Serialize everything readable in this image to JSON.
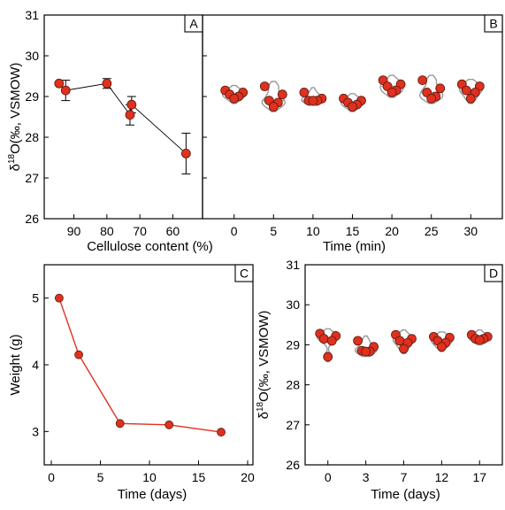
{
  "colors": {
    "marker": "#e0301e",
    "marker_edge": "#5a1a10",
    "violin": "#9a9a9a",
    "line_c": "#e0301e"
  },
  "chart_data": [
    {
      "panel": "A",
      "type": "scatter",
      "xlabel": "Cellulose content (%)",
      "ylabel": "δ18O(‰, VSMOW)",
      "xlim": [
        99,
        51
      ],
      "ylim": [
        26,
        31
      ],
      "xticks": [
        90,
        80,
        70,
        60
      ],
      "yticks": [
        26,
        27,
        28,
        29,
        30,
        31
      ],
      "points": [
        {
          "x": 94.5,
          "y": 29.32,
          "err": 0.0
        },
        {
          "x": 92.5,
          "y": 29.15,
          "err": 0.25
        },
        {
          "x": 80.0,
          "y": 29.32,
          "err": 0.12
        },
        {
          "x": 72.5,
          "y": 28.8,
          "err": 0.2
        },
        {
          "x": 73.0,
          "y": 28.55,
          "err": 0.25
        },
        {
          "x": 56.0,
          "y": 27.6,
          "err": 0.5
        }
      ],
      "connect_order": [
        0,
        1,
        2,
        4,
        3,
        5
      ]
    },
    {
      "panel": "B",
      "type": "scatter",
      "xlabel": "Time (min)",
      "xlim": [
        -4,
        34
      ],
      "ylim": [
        26,
        31
      ],
      "xticks": [
        0,
        5,
        10,
        15,
        20,
        25,
        30
      ],
      "groups": [
        {
          "x": 0,
          "values": [
            29.15,
            29.1,
            29.05,
            29.0,
            28.95
          ]
        },
        {
          "x": 5,
          "values": [
            29.25,
            29.05,
            28.9,
            28.85,
            28.75
          ]
        },
        {
          "x": 10,
          "values": [
            29.1,
            28.95,
            28.9,
            28.9,
            28.9
          ]
        },
        {
          "x": 15,
          "values": [
            28.95,
            28.9,
            28.85,
            28.8,
            28.75
          ]
        },
        {
          "x": 20,
          "values": [
            29.4,
            29.3,
            29.25,
            29.15,
            29.1
          ]
        },
        {
          "x": 25,
          "values": [
            29.4,
            29.2,
            29.1,
            29.0,
            28.95
          ]
        },
        {
          "x": 30,
          "values": [
            29.3,
            29.25,
            29.15,
            29.1,
            28.95
          ]
        }
      ]
    },
    {
      "panel": "C",
      "type": "line",
      "xlabel": "Time (days)",
      "ylabel": "Weight (g)",
      "xlim": [
        0,
        20
      ],
      "ylim": [
        2.5,
        5.5
      ],
      "xticks": [
        0,
        5,
        10,
        15,
        20
      ],
      "yticks": [
        3,
        4,
        5
      ],
      "x": [
        0.8,
        2.8,
        7.0,
        12.0,
        17.3
      ],
      "y": [
        5.0,
        4.15,
        3.12,
        3.1,
        2.99
      ]
    },
    {
      "panel": "D",
      "type": "scatter",
      "xlabel": "Time (days)",
      "ylabel": "δ18O(‰, VSMOW)",
      "xlim": [
        -0.6,
        4.6
      ],
      "ylim": [
        26,
        31
      ],
      "xticks": [
        "0",
        "3",
        "7",
        "12",
        "17"
      ],
      "yticks": [
        26,
        27,
        28,
        29,
        30,
        31
      ],
      "groups": [
        {
          "x": 0,
          "values": [
            29.28,
            29.22,
            29.15,
            29.1,
            28.7
          ]
        },
        {
          "x": 1,
          "values": [
            29.1,
            28.95,
            28.85,
            28.83,
            28.83
          ]
        },
        {
          "x": 2,
          "values": [
            29.25,
            29.15,
            29.1,
            29.05,
            28.9
          ]
        },
        {
          "x": 3,
          "values": [
            29.2,
            29.18,
            29.1,
            29.05,
            28.95
          ]
        },
        {
          "x": 4,
          "values": [
            29.25,
            29.2,
            29.15,
            29.15,
            29.12
          ]
        }
      ]
    }
  ]
}
